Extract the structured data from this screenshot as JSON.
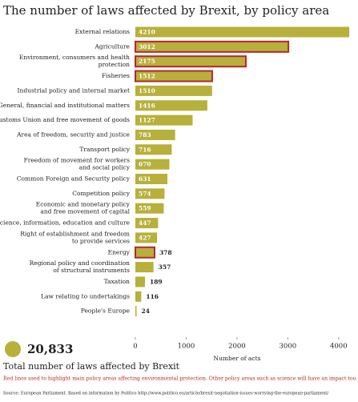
{
  "chart_data": {
    "type": "hbar",
    "title": "The number of laws affected by Brexit, by policy area",
    "categories": [
      "External relations",
      "Agriculture",
      "Environment, consumers and health\nprotection",
      "Fisheries",
      "Industrial policy and internal market",
      "General, financial and institutional matters",
      "Customs Union and free movement of goods",
      "Area of freedom, security and justice",
      "Transport policy",
      "Freedom of movement for workers\nand social policy",
      "Common Foreign and Security policy",
      "Competition policy",
      "Economic and monetary policy\nand free movement of capital",
      "Science, information, education and culture",
      "Right of establishment and freedom\nto provide services",
      "Energy",
      "Regional policy and coordination\nof structural instruments",
      "Taxation",
      "Law relating to undertakings",
      "People's Europe"
    ],
    "values": [
      4210,
      3012,
      2175,
      1512,
      1510,
      1416,
      1127,
      783,
      716,
      670,
      631,
      574,
      559,
      447,
      427,
      378,
      357,
      189,
      116,
      24
    ],
    "color": "#b7b03b",
    "highlighted": [
      false,
      true,
      true,
      true,
      false,
      false,
      false,
      false,
      false,
      false,
      false,
      false,
      false,
      false,
      false,
      true,
      false,
      false,
      false,
      false
    ],
    "highlight_color": "#b8262c",
    "xlim": [
      0,
      4350
    ],
    "xticks": [
      0,
      1000,
      2000,
      3000,
      4000
    ],
    "xlabel": "Number of acts",
    "total": "20,833",
    "total_label": "Total number of laws affected by Brexit",
    "note": "Red lines used to highlight main policy areas affecting environmental protection.  Other policy areas such as science will have an impact too.",
    "source": "Source: European Parliament. Based on information by Politico  http://www.politico.eu/article/brexit-negotiation-issues-worrying-the-european-parliament/"
  }
}
